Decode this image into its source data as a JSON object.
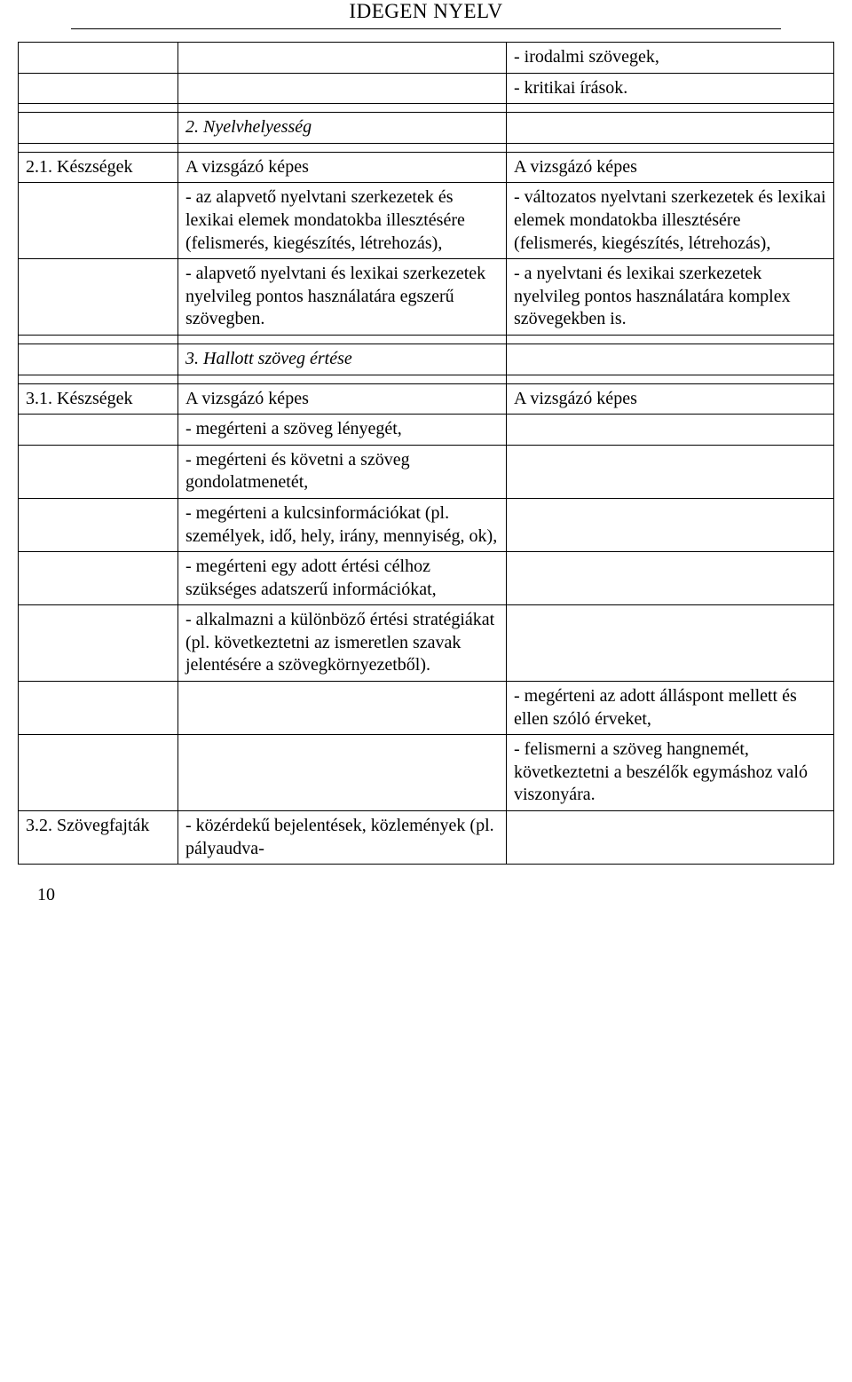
{
  "header": "IDEGEN NYELV",
  "page_number": "10",
  "r_intro": [
    " - irodalmi szövegek,",
    " - kritikai írások."
  ],
  "sec2": {
    "heading": "2. Nyelvhelyesség"
  },
  "r21": {
    "label": "2.1. Készségek",
    "left_head": "A vizsgázó képes",
    "right_head": "A vizsgázó képes",
    "left_rows": [
      " - az alapvető nyelvtani szerkezetek és lexikai elemek mondatokba illesztésére (felismerés, kiegészítés, létrehozás),",
      " - alapvető nyelvtani és lexikai szerkezetek nyelvileg pontos használatára egszerű szövegben."
    ],
    "right_rows": [
      " - változatos nyelvtani szerkezetek és lexikai elemek mondatokba illesztésére (felismerés, kiegészítés, létrehozás),",
      " - a nyelvtani és lexikai szerkezetek nyelvileg pontos használatára komplex szövegekben is."
    ]
  },
  "sec3": {
    "heading": "3. Hallott szöveg értése"
  },
  "r31": {
    "label": "3.1. Készségek",
    "left_head": "A vizsgázó képes",
    "right_head": "A vizsgázó képes",
    "left_rows": [
      " - megérteni a szöveg lényegét,",
      " - megérteni és követni a szöveg gondolatmenetét,",
      " - megérteni a kulcsinformációkat (pl. személyek, idő, hely, irány, mennyiség, ok),",
      " - megérteni egy adott értési célhoz szükséges adatszerű információkat,",
      " - alkalmazni a különböző értési stratégiákat (pl. következtetni az ismeretlen szavak jelentésére a szövegkörnyezetből)."
    ],
    "right_after": [
      " - megérteni az adott álláspont mellett és ellen szóló érveket,",
      " - felismerni a szöveg hangnemét, következtetni a beszélők egymáshoz való viszonyára."
    ]
  },
  "r32": {
    "label": "3.2. Szövegfajták",
    "left": " - közérdekű bejelentések, közlemények (pl. pályaudva-"
  }
}
